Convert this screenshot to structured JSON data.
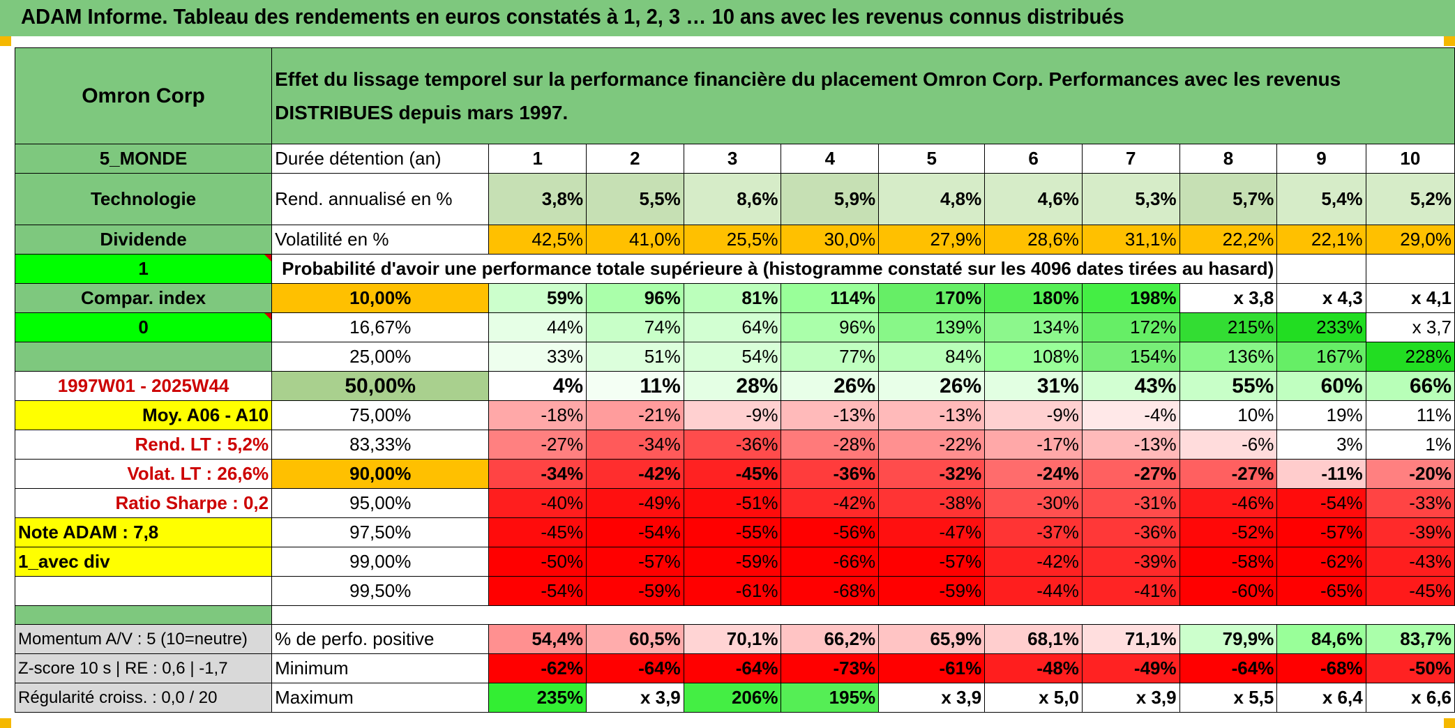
{
  "title": "ADAM Informe. Tableau des rendements en euros constatés à 1, 2, 3 … 10 ans avec les revenus connus distribués",
  "company": "Omron Corp",
  "header_text": "Effet du lissage temporel sur la performance financière du placement Omron Corp. Performances avec les revenus DISTRIBUES depuis mars 1997.",
  "side": {
    "region": "5_MONDE",
    "sector": "Technologie",
    "div": "Dividende",
    "one": "1",
    "compar": "Compar. index",
    "zero": "0",
    "period": "1997W01 - 2025W44",
    "moy": "Moy. A06 - A10",
    "rend_lt": "Rend. LT :   5,2%",
    "volat_lt": "Volat. LT :   26,6%",
    "sharpe": "Ratio Sharpe :    0,2",
    "note": "Note ADAM : 7,8",
    "avecdiv": "1_avec div"
  },
  "labels": {
    "duree": "Durée détention (an)",
    "rend": "Rend. annualisé en %",
    "volat": "Volatilité en %",
    "proba": "Probabilité d'avoir une performance totale supérieure à (histogramme constaté sur les 4096 dates tirées au hasard)"
  },
  "years": [
    "1",
    "2",
    "3",
    "4",
    "5",
    "6",
    "7",
    "8",
    "9",
    "10"
  ],
  "rend": [
    "3,8%",
    "5,5%",
    "8,6%",
    "5,9%",
    "4,8%",
    "4,6%",
    "5,3%",
    "5,7%",
    "5,4%",
    "5,2%"
  ],
  "volat": [
    "42,5%",
    "41,0%",
    "25,5%",
    "30,0%",
    "27,9%",
    "28,6%",
    "31,1%",
    "22,2%",
    "22,1%",
    "29,0%"
  ],
  "prob_rows": [
    {
      "p": "10,00%",
      "v": [
        "59%",
        "96%",
        "81%",
        "114%",
        "170%",
        "180%",
        "198%",
        "x 3,8",
        "x 4,3",
        "x 4,1"
      ]
    },
    {
      "p": "16,67%",
      "v": [
        "44%",
        "74%",
        "64%",
        "96%",
        "139%",
        "134%",
        "172%",
        "215%",
        "233%",
        "x 3,7"
      ]
    },
    {
      "p": "25,00%",
      "v": [
        "33%",
        "51%",
        "54%",
        "77%",
        "84%",
        "108%",
        "154%",
        "136%",
        "167%",
        "228%"
      ]
    },
    {
      "p": "50,00%",
      "v": [
        "4%",
        "11%",
        "28%",
        "26%",
        "26%",
        "31%",
        "43%",
        "55%",
        "60%",
        "66%"
      ]
    },
    {
      "p": "75,00%",
      "v": [
        "-18%",
        "-21%",
        "-9%",
        "-13%",
        "-13%",
        "-9%",
        "-4%",
        "10%",
        "19%",
        "11%"
      ]
    },
    {
      "p": "83,33%",
      "v": [
        "-27%",
        "-34%",
        "-36%",
        "-28%",
        "-22%",
        "-17%",
        "-13%",
        "-6%",
        "3%",
        "1%"
      ]
    },
    {
      "p": "90,00%",
      "v": [
        "-34%",
        "-42%",
        "-45%",
        "-36%",
        "-32%",
        "-24%",
        "-27%",
        "-27%",
        "-11%",
        "-20%"
      ]
    },
    {
      "p": "95,00%",
      "v": [
        "-40%",
        "-49%",
        "-51%",
        "-42%",
        "-38%",
        "-30%",
        "-31%",
        "-46%",
        "-54%",
        "-33%"
      ]
    },
    {
      "p": "97,50%",
      "v": [
        "-45%",
        "-54%",
        "-55%",
        "-56%",
        "-47%",
        "-37%",
        "-36%",
        "-52%",
        "-57%",
        "-39%"
      ]
    },
    {
      "p": "99,00%",
      "v": [
        "-50%",
        "-57%",
        "-59%",
        "-66%",
        "-57%",
        "-42%",
        "-39%",
        "-58%",
        "-62%",
        "-43%"
      ]
    },
    {
      "p": "99,50%",
      "v": [
        "-54%",
        "-59%",
        "-61%",
        "-68%",
        "-59%",
        "-44%",
        "-41%",
        "-60%",
        "-65%",
        "-45%"
      ]
    }
  ],
  "bottom": {
    "momentum": "Momentum A/V : 5 (10=neutre)",
    "zscore": "Z-score 10 s | RE : 0,6 | -1,7",
    "regul": "Régularité croiss. : 0,0 / 20",
    "pos_label": "% de perfo. positive",
    "min_label": "Minimum",
    "max_label": "Maximum",
    "pos": [
      "54,4%",
      "60,5%",
      "70,1%",
      "66,2%",
      "65,9%",
      "68,1%",
      "71,1%",
      "79,9%",
      "84,6%",
      "83,7%"
    ],
    "min": [
      "-62%",
      "-64%",
      "-64%",
      "-73%",
      "-61%",
      "-48%",
      "-49%",
      "-64%",
      "-68%",
      "-50%"
    ],
    "max": [
      "235%",
      "x 3,9",
      "206%",
      "195%",
      "x 3,9",
      "x 5,0",
      "x 3,9",
      "x 5,5",
      "x 6,4",
      "x 6,6"
    ]
  },
  "colors": {
    "rend": [
      "#c6e0b4",
      "#c6e0b4",
      "#d6ecc8",
      "#c6e0b4",
      "#d6ecc8",
      "#d6ecc8",
      "#d6ecc8",
      "#c6e0b4",
      "#d6ecc8",
      "#d6ecc8"
    ],
    "volat": [
      "#ffc000",
      "#ffc000",
      "#ffc000",
      "#ffc000",
      "#ffc000",
      "#ffc000",
      "#ffc000",
      "#ffc000",
      "#ffc000",
      "#ffc000"
    ],
    "prob_p": [
      "#ffc000",
      "#ffffff",
      "#ffffff",
      "#a9d08e",
      "#ffffff",
      "#ffffff",
      "#ffc000",
      "#ffffff",
      "#ffffff",
      "#ffffff",
      "#ffffff"
    ],
    "prob": [
      [
        "#ccffcc",
        "#aaffaa",
        "#bbffbb",
        "#99ff99",
        "#66ee66",
        "#55ee55",
        "#44ee44",
        "#ffffff",
        "#ffffff",
        "#ffffff"
      ],
      [
        "#e6ffe6",
        "#c8ffc8",
        "#d2ffd2",
        "#aaffaa",
        "#88f788",
        "#8cf78c",
        "#66ee66",
        "#33dd33",
        "#22dd22",
        "#ffffff"
      ],
      [
        "#eeffee",
        "#dcffdc",
        "#d8ffd8",
        "#c0ffc0",
        "#b8ffb8",
        "#99ff99",
        "#77ee77",
        "#88f788",
        "#66ee66",
        "#22dd22"
      ],
      [
        "#ffffff",
        "#f4fff4",
        "#e4ffe4",
        "#e8ffe8",
        "#e8ffe8",
        "#e2ffe2",
        "#d2ffd2",
        "#c8ffc8",
        "#c0ffc0",
        "#b8ffb8"
      ],
      [
        "#ffa8a8",
        "#ff9c9c",
        "#ffd0d0",
        "#ffbaba",
        "#ffbaba",
        "#ffd0d0",
        "#ffe8e8",
        "#ffffff",
        "#ffffff",
        "#ffffff"
      ],
      [
        "#ff8080",
        "#ff5a5a",
        "#ff4c4c",
        "#ff7a7a",
        "#ff9090",
        "#ffa8a8",
        "#ffbaba",
        "#ffdcdc",
        "#ffffff",
        "#ffffff"
      ],
      [
        "#ff4444",
        "#ff2e2e",
        "#ff2222",
        "#ff3c3c",
        "#ff4c4c",
        "#ff6c6c",
        "#ff6060",
        "#ff6060",
        "#ffcccc",
        "#ff8080"
      ],
      [
        "#ff1e1e",
        "#ff1010",
        "#ff0c0c",
        "#ff2a2a",
        "#ff3434",
        "#ff5050",
        "#ff4c4c",
        "#ff1a1a",
        "#ff0c0c",
        "#ff4444"
      ],
      [
        "#ff0c0c",
        "#ff0000",
        "#ff0000",
        "#ff0000",
        "#ff1010",
        "#ff3434",
        "#ff3838",
        "#ff0808",
        "#ff0000",
        "#ff2a2a"
      ],
      [
        "#ff0000",
        "#ff0000",
        "#ff0000",
        "#ff0000",
        "#ff0000",
        "#ff2222",
        "#ff2a2a",
        "#ff0000",
        "#ff0000",
        "#ff1e1e"
      ],
      [
        "#ff0000",
        "#ff0000",
        "#ff0000",
        "#ff0000",
        "#ff0000",
        "#ff1e1e",
        "#ff2424",
        "#ff0000",
        "#ff0000",
        "#ff1a1a"
      ]
    ],
    "pos": [
      "#ff9090",
      "#ffacac",
      "#ffd4d4",
      "#ffc4c4",
      "#ffc4c4",
      "#ffcece",
      "#ffdede",
      "#ccffcc",
      "#99ff99",
      "#aaffaa"
    ],
    "min": [
      "#ff0000",
      "#ff0000",
      "#ff0000",
      "#ff0000",
      "#ff0000",
      "#ff1e1e",
      "#ff2222",
      "#ff0000",
      "#ff0000",
      "#ff2222"
    ],
    "max": [
      "#33ee33",
      "#ffffff",
      "#44ee44",
      "#55ee55",
      "#ffffff",
      "#ffffff",
      "#ffffff",
      "#ffffff",
      "#ffffff",
      "#ffffff"
    ]
  }
}
